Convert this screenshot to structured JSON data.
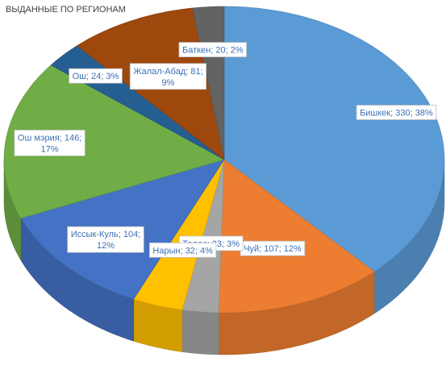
{
  "chart_data": {
    "type": "pie",
    "title": "ВЫДАННЫЕ ПО РЕГИОНАМ",
    "slices": [
      {
        "name": "Бишкек",
        "value": 330,
        "label": "Бишкек; 330; 38%",
        "color": "#5b9bd5"
      },
      {
        "name": "Чуй",
        "value": 107,
        "label": "Чуй; 107; 12%",
        "color": "#ed7d31"
      },
      {
        "name": "Талас",
        "value": 23,
        "label": "Талас; 23; 3%",
        "color": "#a5a5a5"
      },
      {
        "name": "Нарын",
        "value": 32,
        "label": "Нарын; 32; 4%",
        "color": "#ffc000"
      },
      {
        "name": "Иссык-Куль",
        "value": 104,
        "label": "Иссык-Куль; 104;\n12%",
        "color": "#4472c4"
      },
      {
        "name": "Ош мэрия",
        "value": 146,
        "label": "Ош мэрия; 146;\n17%",
        "color": "#70ad47"
      },
      {
        "name": "Ош",
        "value": 24,
        "label": "Ош; 24; 3%",
        "color": "#255e91"
      },
      {
        "name": "Жалал-Абад",
        "value": 81,
        "label": "Жалал-Абад; 81;\n9%",
        "color": "#9e480e"
      },
      {
        "name": "Баткен",
        "value": 20,
        "label": "Баткен; 20; 2%",
        "color": "#636363"
      }
    ],
    "style": "3d-pie",
    "legend": "none"
  }
}
